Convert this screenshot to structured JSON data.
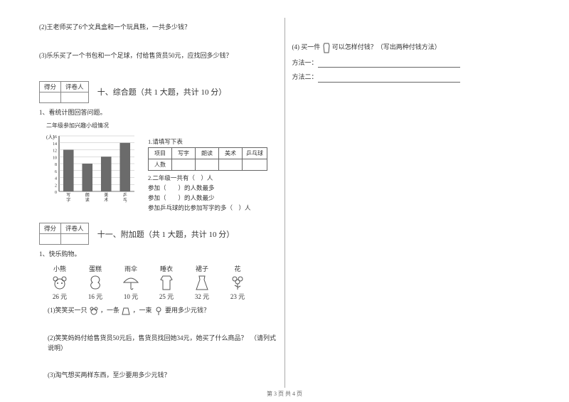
{
  "left": {
    "q2": "(2)王老师买了6个文具盒和一个玩具熊，一共多少钱？",
    "q3": "(3)乐乐买了一个书包和一个足球，付给售货员50元，应找回多少钱？",
    "score_labels": [
      "得分",
      "评卷人"
    ],
    "sect10_title": "十、综合题（共 1 大题，共计 10 分）",
    "sect10_q": "1、看统计图回答问题。",
    "chart_caption": "二年级参加兴趣小组情况",
    "chart": {
      "y_max": 16,
      "y_step": 2,
      "categories": [
        "写字",
        "朗读",
        "美术",
        "乒乓球"
      ],
      "values": [
        12,
        8,
        10,
        14
      ],
      "y_label": "(人)",
      "bar_color": "#6b6b6b",
      "grid_color": "#bbbbbb",
      "axis_color": "#333333"
    },
    "table_caption": "1.请填写下表",
    "table_headers": [
      "项目",
      "写字",
      "朗读",
      "美术",
      "乒乓球"
    ],
    "table_row_label": "人数",
    "sub_q": [
      "2.二年级一共有（　）人",
      "参加（　　）的人数最多",
      "参加（　　）的人数最少",
      "参加乒乓球的比参加写字的多（　）人"
    ],
    "sect11_title": "十一、附加题（共 1 大题，共计 10 分）",
    "sect11_q": "1、快乐购物。",
    "items": [
      {
        "name": "小熊",
        "price": "26 元"
      },
      {
        "name": "蛋糕",
        "price": "16 元"
      },
      {
        "name": "雨伞",
        "price": "10 元"
      },
      {
        "name": "睡衣",
        "price": "25 元"
      },
      {
        "name": "裙子",
        "price": "32 元"
      },
      {
        "name": "花",
        "price": "23 元"
      }
    ],
    "p1_a": "(1)笑笑买一只",
    "p1_b": "，一条",
    "p1_c": "，一束",
    "p1_d": "要用多少元钱？",
    "p2": "(2)笑笑妈妈付给售货员50元后，售货员找回她34元，她买了什么商品？　（请列式说明）",
    "p3": "(3)淘气想买两样东西，至少要用多少元钱？"
  },
  "right": {
    "q4_a": "(4) 买一件",
    "q4_b": "可以怎样付钱？（写出两种付钱方法）",
    "m1": "方法一：",
    "m2": "方法二："
  },
  "footer": "第 3 页 共 4 页"
}
